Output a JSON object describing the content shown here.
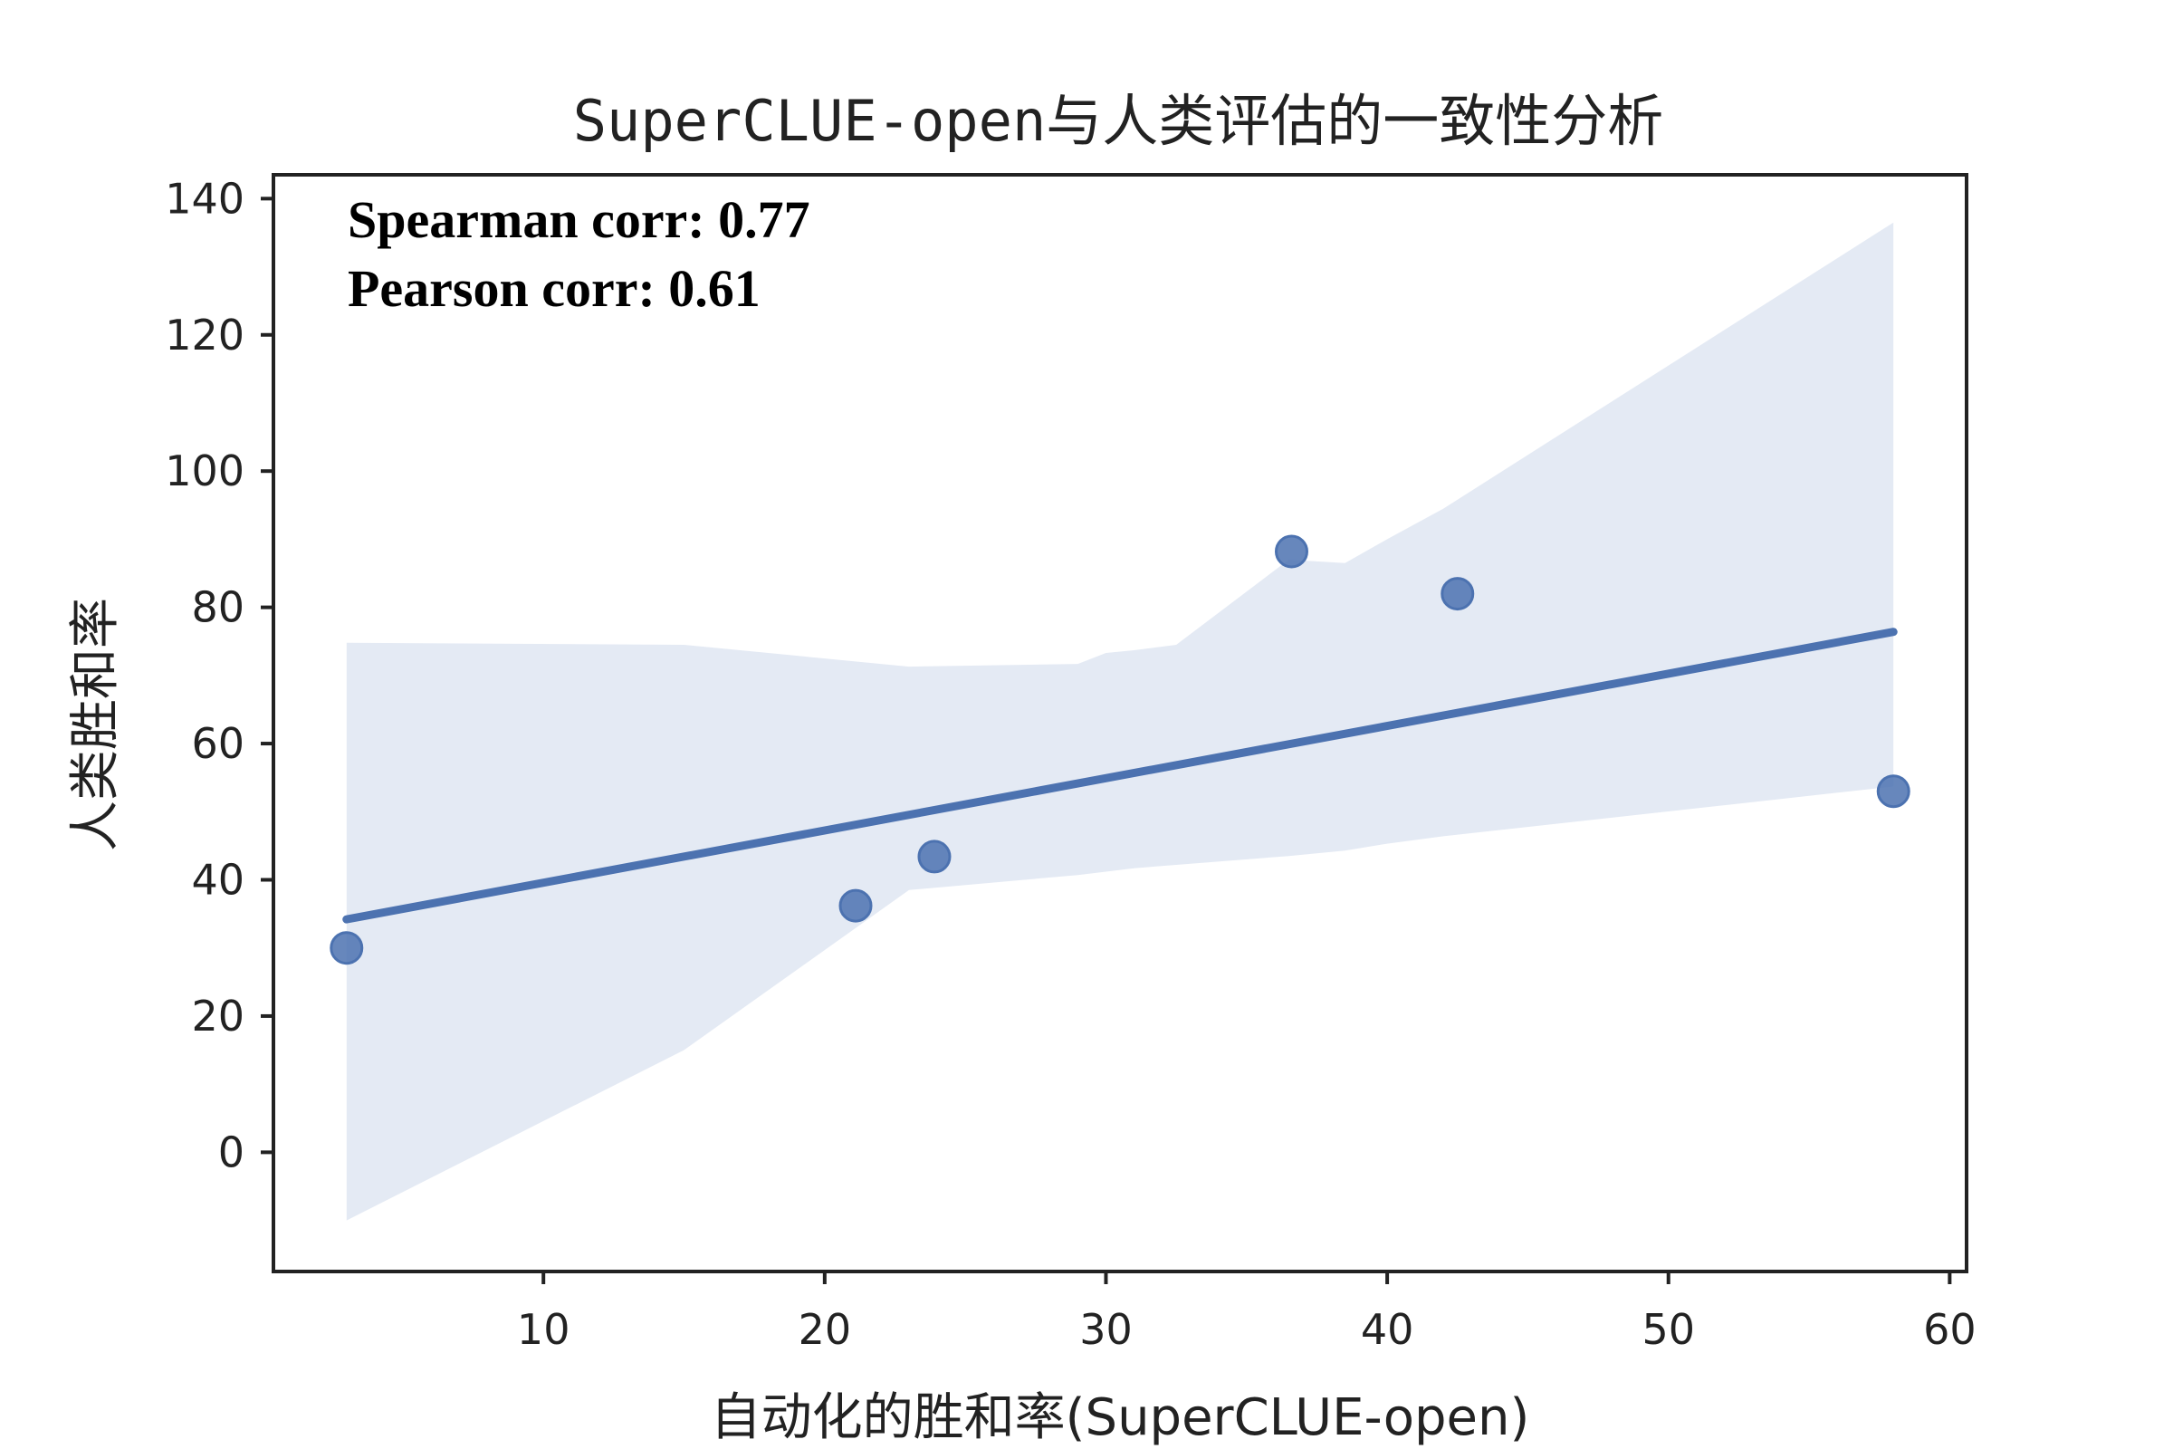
{
  "chart_data": {
    "type": "scatter",
    "title": "SuperCLUE-open与人类评估的一致性分析",
    "xlabel": "自动化的胜和率(SuperCLUE-open)",
    "ylabel": "人类胜和率",
    "xlim": [
      0.4,
      60.6
    ],
    "ylim": [
      -17.5,
      143.5
    ],
    "xticks": [
      10,
      20,
      30,
      40,
      50,
      60
    ],
    "yticks": [
      0,
      20,
      40,
      60,
      80,
      100,
      120,
      140
    ],
    "grid": false,
    "points": [
      {
        "x": 3,
        "y": 30
      },
      {
        "x": 21.1,
        "y": 36.2
      },
      {
        "x": 23.9,
        "y": 43.4
      },
      {
        "x": 36.6,
        "y": 88.2
      },
      {
        "x": 42.5,
        "y": 82
      },
      {
        "x": 58,
        "y": 53
      }
    ],
    "regression": {
      "x": [
        3,
        58
      ],
      "y": [
        34.2,
        76.4
      ]
    },
    "confidence_band": {
      "x": [
        3,
        15,
        23,
        29,
        30,
        31,
        32.5,
        36.5,
        38.5,
        40,
        42,
        58
      ],
      "upper": [
        74.8,
        74.5,
        71.3,
        71.7,
        73.3,
        73.7,
        74.5,
        87,
        86.5,
        90,
        94.5,
        136.5
      ],
      "lower": [
        -10,
        15,
        38.5,
        40.7,
        41.2,
        41.7,
        42.2,
        43.5,
        44.3,
        45.3,
        46.4,
        53.7
      ]
    },
    "annotations": [
      "Spearman corr: 0.77",
      "Pearson corr: 0.61"
    ],
    "colors": {
      "points": "#4c72b0",
      "line": "#4c72b0",
      "band": "#e4eaf4",
      "axes": "#222222"
    }
  }
}
